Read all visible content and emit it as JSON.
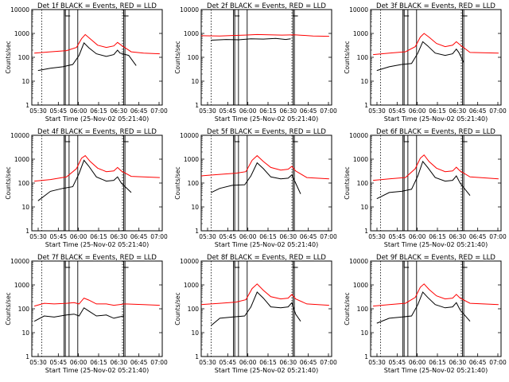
{
  "chart_data": {
    "type": "line",
    "layout": "3x3 grid",
    "y_scale": "log",
    "ylim": [
      1,
      10000
    ],
    "y_ticks": [
      "1",
      "10",
      "100",
      "1000",
      "10000"
    ],
    "ylabel": "Counts/sec",
    "xlabel": "Start Time (25-Nov-02 05:21:40)",
    "x_ticks_a": [
      "05:30",
      "05:45",
      "06:00",
      "06:15",
      "06:30",
      "06:45",
      "07:00"
    ],
    "x_ticks_b": [
      "05:30",
      "05:45",
      "06:00",
      "06:15",
      "06:30",
      "06:45",
      "07:00"
    ],
    "xlim_minutes_from_start": [
      0,
      105
    ],
    "series_colors": {
      "events": "#000000",
      "lld": "#ff0000"
    },
    "panels": [
      {
        "title": "Det 1f BLACK = Events, RED = LLD",
        "ticks": "a",
        "events": [
          [
            5,
            28
          ],
          [
            15,
            35
          ],
          [
            25,
            40
          ],
          [
            33,
            50
          ],
          [
            38,
            120
          ],
          [
            42,
            400
          ],
          [
            46,
            250
          ],
          [
            52,
            140
          ],
          [
            60,
            110
          ],
          [
            66,
            130
          ],
          [
            69,
            200
          ],
          [
            71,
            150
          ],
          [
            78,
            120
          ],
          [
            84,
            45
          ]
        ],
        "lld": [
          [
            2,
            150
          ],
          [
            15,
            170
          ],
          [
            28,
            190
          ],
          [
            36,
            260
          ],
          [
            40,
            600
          ],
          [
            43,
            900
          ],
          [
            47,
            600
          ],
          [
            53,
            320
          ],
          [
            60,
            260
          ],
          [
            66,
            300
          ],
          [
            69,
            420
          ],
          [
            72,
            320
          ],
          [
            80,
            170
          ],
          [
            90,
            150
          ],
          [
            103,
            140
          ]
        ]
      },
      {
        "title": "Det 2f BLACK = Events, RED = LLD",
        "ticks": "b",
        "events": [
          [
            8,
            520
          ],
          [
            20,
            560
          ],
          [
            30,
            540
          ],
          [
            40,
            600
          ],
          [
            50,
            580
          ],
          [
            60,
            620
          ],
          [
            68,
            560
          ],
          [
            72,
            600
          ]
        ],
        "lld": [
          [
            0,
            800
          ],
          [
            15,
            780
          ],
          [
            25,
            820
          ],
          [
            35,
            850
          ],
          [
            45,
            900
          ],
          [
            55,
            880
          ],
          [
            65,
            850
          ],
          [
            75,
            880
          ],
          [
            90,
            780
          ],
          [
            103,
            760
          ]
        ]
      },
      {
        "title": "Det 3f BLACK = Events, RED = LLD",
        "ticks": "a",
        "events": [
          [
            5,
            28
          ],
          [
            15,
            40
          ],
          [
            25,
            50
          ],
          [
            33,
            55
          ],
          [
            38,
            150
          ],
          [
            42,
            450
          ],
          [
            46,
            300
          ],
          [
            52,
            150
          ],
          [
            60,
            120
          ],
          [
            66,
            140
          ],
          [
            69,
            220
          ],
          [
            71,
            160
          ],
          [
            75,
            60
          ]
        ],
        "lld": [
          [
            2,
            130
          ],
          [
            15,
            150
          ],
          [
            28,
            170
          ],
          [
            36,
            280
          ],
          [
            40,
            700
          ],
          [
            43,
            1000
          ],
          [
            47,
            700
          ],
          [
            53,
            380
          ],
          [
            60,
            280
          ],
          [
            66,
            320
          ],
          [
            69,
            450
          ],
          [
            72,
            330
          ],
          [
            80,
            160
          ],
          [
            103,
            150
          ]
        ]
      },
      {
        "title": "Det 4f BLACK = Events, RED = LLD",
        "ticks": "a",
        "events": [
          [
            5,
            18
          ],
          [
            15,
            45
          ],
          [
            25,
            60
          ],
          [
            33,
            70
          ],
          [
            38,
            250
          ],
          [
            42,
            900
          ],
          [
            46,
            500
          ],
          [
            52,
            180
          ],
          [
            60,
            120
          ],
          [
            66,
            130
          ],
          [
            69,
            180
          ],
          [
            72,
            100
          ],
          [
            80,
            40
          ]
        ],
        "lld": [
          [
            2,
            120
          ],
          [
            15,
            140
          ],
          [
            28,
            180
          ],
          [
            36,
            400
          ],
          [
            40,
            1100
          ],
          [
            43,
            1400
          ],
          [
            47,
            800
          ],
          [
            53,
            420
          ],
          [
            60,
            300
          ],
          [
            66,
            320
          ],
          [
            69,
            450
          ],
          [
            72,
            320
          ],
          [
            80,
            190
          ],
          [
            103,
            170
          ]
        ]
      },
      {
        "title": "Det 5f BLACK = Events, RED = LLD",
        "ticks": "b",
        "events": [
          [
            8,
            40
          ],
          [
            15,
            60
          ],
          [
            25,
            80
          ],
          [
            35,
            85
          ],
          [
            40,
            200
          ],
          [
            45,
            700
          ],
          [
            50,
            400
          ],
          [
            56,
            180
          ],
          [
            64,
            150
          ],
          [
            70,
            160
          ],
          [
            73,
            220
          ],
          [
            76,
            100
          ],
          [
            80,
            35
          ]
        ],
        "lld": [
          [
            0,
            200
          ],
          [
            15,
            230
          ],
          [
            28,
            260
          ],
          [
            36,
            300
          ],
          [
            41,
            900
          ],
          [
            45,
            1400
          ],
          [
            50,
            800
          ],
          [
            56,
            450
          ],
          [
            64,
            350
          ],
          [
            70,
            380
          ],
          [
            73,
            500
          ],
          [
            76,
            320
          ],
          [
            85,
            170
          ],
          [
            103,
            150
          ]
        ]
      },
      {
        "title": "Det 6f BLACK = Events, RED = LLD",
        "ticks": "a",
        "events": [
          [
            5,
            22
          ],
          [
            15,
            40
          ],
          [
            25,
            45
          ],
          [
            33,
            55
          ],
          [
            38,
            200
          ],
          [
            42,
            800
          ],
          [
            46,
            450
          ],
          [
            52,
            170
          ],
          [
            60,
            120
          ],
          [
            66,
            130
          ],
          [
            69,
            200
          ],
          [
            72,
            100
          ],
          [
            80,
            30
          ]
        ],
        "lld": [
          [
            2,
            130
          ],
          [
            15,
            150
          ],
          [
            28,
            170
          ],
          [
            36,
            400
          ],
          [
            40,
            1100
          ],
          [
            43,
            1500
          ],
          [
            47,
            800
          ],
          [
            53,
            420
          ],
          [
            60,
            300
          ],
          [
            66,
            320
          ],
          [
            69,
            460
          ],
          [
            72,
            320
          ],
          [
            80,
            180
          ],
          [
            103,
            150
          ]
        ]
      },
      {
        "title": "Det 7f BLACK = Events, RED = LLD",
        "ticks": "a",
        "events": [
          [
            2,
            30
          ],
          [
            10,
            50
          ],
          [
            18,
            45
          ],
          [
            28,
            55
          ],
          [
            34,
            60
          ],
          [
            38,
            50
          ],
          [
            42,
            110
          ],
          [
            46,
            80
          ],
          [
            52,
            50
          ],
          [
            60,
            55
          ],
          [
            66,
            40
          ],
          [
            70,
            45
          ],
          [
            74,
            50
          ]
        ],
        "lld": [
          [
            2,
            130
          ],
          [
            10,
            170
          ],
          [
            18,
            160
          ],
          [
            28,
            170
          ],
          [
            34,
            180
          ],
          [
            38,
            160
          ],
          [
            42,
            280
          ],
          [
            46,
            230
          ],
          [
            52,
            160
          ],
          [
            60,
            160
          ],
          [
            66,
            140
          ],
          [
            75,
            160
          ],
          [
            90,
            150
          ],
          [
            103,
            140
          ]
        ]
      },
      {
        "title": "Det 8f BLACK = Events, RED = LLD",
        "ticks": "b",
        "events": [
          [
            8,
            20
          ],
          [
            15,
            40
          ],
          [
            25,
            45
          ],
          [
            35,
            50
          ],
          [
            40,
            120
          ],
          [
            45,
            500
          ],
          [
            50,
            280
          ],
          [
            56,
            120
          ],
          [
            64,
            110
          ],
          [
            70,
            120
          ],
          [
            73,
            180
          ],
          [
            76,
            60
          ],
          [
            80,
            30
          ]
        ],
        "lld": [
          [
            0,
            150
          ],
          [
            15,
            170
          ],
          [
            28,
            190
          ],
          [
            36,
            240
          ],
          [
            41,
            700
          ],
          [
            45,
            1100
          ],
          [
            50,
            600
          ],
          [
            56,
            320
          ],
          [
            64,
            260
          ],
          [
            70,
            280
          ],
          [
            73,
            400
          ],
          [
            76,
            260
          ],
          [
            85,
            160
          ],
          [
            103,
            140
          ]
        ]
      },
      {
        "title": "Det 9f BLACK = Events, RED = LLD",
        "ticks": "a",
        "events": [
          [
            5,
            25
          ],
          [
            15,
            40
          ],
          [
            25,
            45
          ],
          [
            33,
            50
          ],
          [
            38,
            150
          ],
          [
            42,
            500
          ],
          [
            46,
            300
          ],
          [
            52,
            150
          ],
          [
            60,
            110
          ],
          [
            66,
            120
          ],
          [
            69,
            180
          ],
          [
            72,
            90
          ],
          [
            80,
            30
          ]
        ],
        "lld": [
          [
            2,
            130
          ],
          [
            15,
            150
          ],
          [
            28,
            170
          ],
          [
            36,
            300
          ],
          [
            40,
            800
          ],
          [
            43,
            1100
          ],
          [
            47,
            650
          ],
          [
            53,
            350
          ],
          [
            60,
            260
          ],
          [
            66,
            280
          ],
          [
            69,
            400
          ],
          [
            72,
            280
          ],
          [
            80,
            170
          ],
          [
            103,
            150
          ]
        ]
      }
    ],
    "markers": {
      "dotted_x": [
        8,
        73
      ],
      "solid_x": [
        26,
        27,
        30,
        37,
        74,
        75
      ],
      "L_marks_x": [
        27,
        74
      ]
    }
  }
}
